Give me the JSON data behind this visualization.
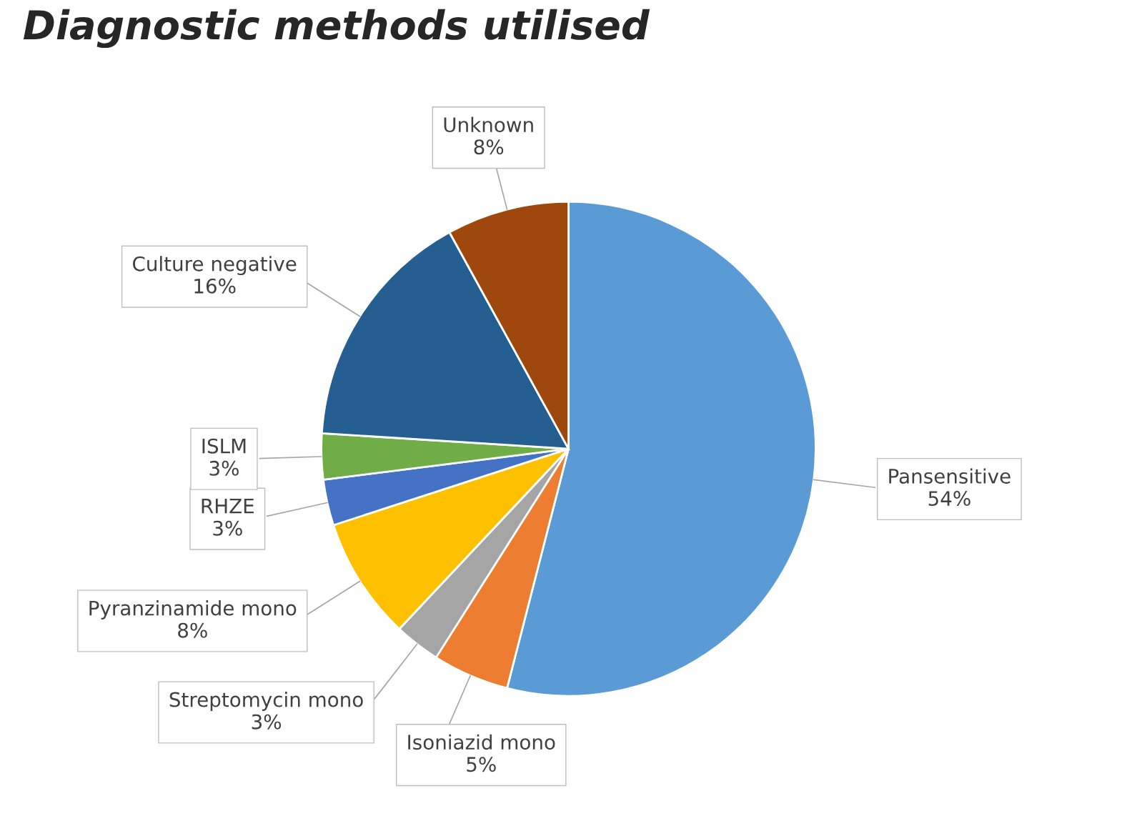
{
  "chart_data": {
    "type": "pie",
    "title": "Diagnostic methods utilised",
    "categories": [
      "Pansensitive",
      "Isoniazid mono",
      "Streptomycin mono",
      "Pyranzinamide mono",
      "RHZE",
      "ISLM",
      "Culture negative",
      "Unknown"
    ],
    "values": [
      54,
      5,
      3,
      8,
      3,
      3,
      16,
      8
    ],
    "value_labels": [
      "54%",
      "5%",
      "3%",
      "8%",
      "3%",
      "3%",
      "16%",
      "8%"
    ],
    "colors": [
      "#5b9bd5",
      "#ed7d31",
      "#a5a5a5",
      "#ffc000",
      "#4472c4",
      "#70ad47",
      "#255e91",
      "#9e480e"
    ]
  }
}
